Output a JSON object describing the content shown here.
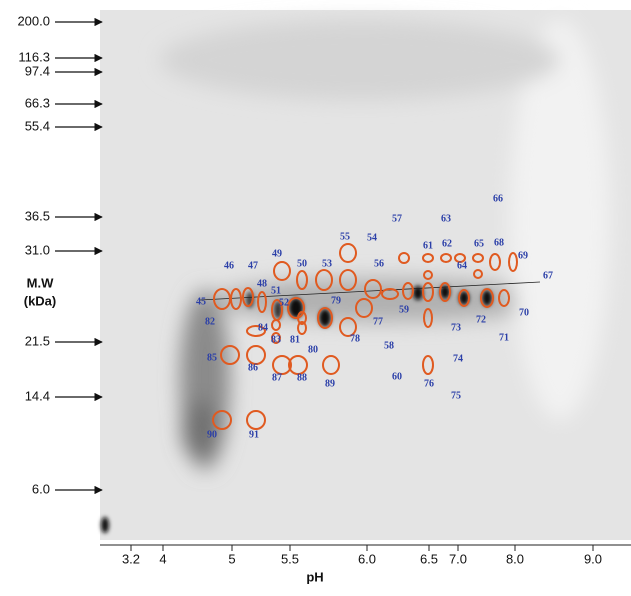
{
  "mw_axis": {
    "label_line1": "M.W",
    "label_line2": "(kDa)",
    "ticks": [
      "200.0",
      "116.3",
      "97.4",
      "66.3",
      "55.4",
      "36.5",
      "31.0",
      "21.5",
      "14.4",
      "6.0"
    ]
  },
  "ph_axis": {
    "label": "pH",
    "ticks": [
      "3.2",
      "4",
      "5",
      "5.5",
      "6.0",
      "6.5",
      "7.0",
      "8.0",
      "9.0"
    ]
  },
  "spots": [
    "45",
    "46",
    "47",
    "48",
    "49",
    "50",
    "51",
    "52",
    "53",
    "54",
    "55",
    "56",
    "57",
    "58",
    "59",
    "60",
    "61",
    "62",
    "63",
    "64",
    "65",
    "66",
    "67",
    "68",
    "69",
    "70",
    "71",
    "72",
    "73",
    "74",
    "75",
    "76",
    "77",
    "78",
    "79",
    "80",
    "81",
    "82",
    "83",
    "84",
    "85",
    "86",
    "87",
    "88",
    "89",
    "90",
    "91"
  ]
}
